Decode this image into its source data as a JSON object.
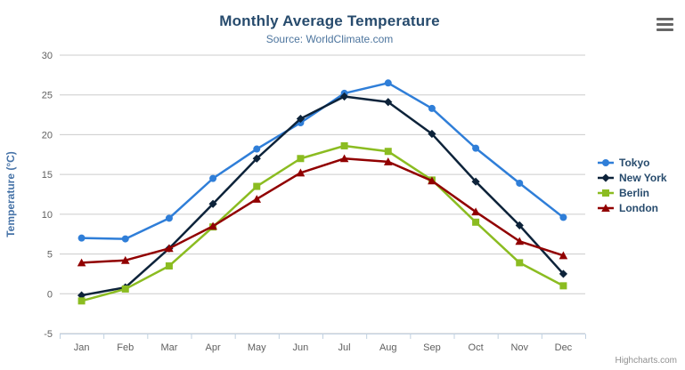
{
  "chart": {
    "title": "Monthly Average Temperature",
    "subtitle": "Source: WorldClimate.com",
    "export_icon": "hamburger-menu",
    "credits_text": "Highcharts.com"
  },
  "chart_data": {
    "type": "line",
    "title": "Monthly Average Temperature",
    "subtitle": "Source: WorldClimate.com",
    "xlabel": "",
    "ylabel": "Temperature (°C)",
    "ylim": [
      -5,
      30
    ],
    "ytick_step": 5,
    "grid": true,
    "legend_position": "right",
    "categories": [
      "Jan",
      "Feb",
      "Mar",
      "Apr",
      "May",
      "Jun",
      "Jul",
      "Aug",
      "Sep",
      "Oct",
      "Nov",
      "Dec"
    ],
    "series": [
      {
        "name": "Tokyo",
        "color": "#2f7ed8",
        "marker": "circle",
        "values": [
          7.0,
          6.9,
          9.5,
          14.5,
          18.2,
          21.5,
          25.2,
          26.5,
          23.3,
          18.3,
          13.9,
          9.6
        ]
      },
      {
        "name": "New York",
        "color": "#0d233a",
        "marker": "diamond",
        "values": [
          -0.2,
          0.8,
          5.7,
          11.3,
          17.0,
          22.0,
          24.8,
          24.1,
          20.1,
          14.1,
          8.6,
          2.5
        ]
      },
      {
        "name": "Berlin",
        "color": "#8bbc21",
        "marker": "square",
        "values": [
          -0.9,
          0.6,
          3.5,
          8.4,
          13.5,
          17.0,
          18.6,
          17.9,
          14.3,
          9.0,
          3.9,
          1.0
        ]
      },
      {
        "name": "London",
        "color": "#910000",
        "marker": "triangle",
        "values": [
          3.9,
          4.2,
          5.7,
          8.5,
          11.9,
          15.2,
          17.0,
          16.6,
          14.2,
          10.3,
          6.6,
          4.8
        ]
      }
    ]
  },
  "colors": {
    "title": "#274b6d",
    "subtitle": "#4d759e",
    "axis_label": "#606060",
    "axis_line": "#c0d0e0",
    "gridline": "#cccccc",
    "axis_title": "#4572a7",
    "legend_text": "#274b6d",
    "credit": "#909090"
  }
}
